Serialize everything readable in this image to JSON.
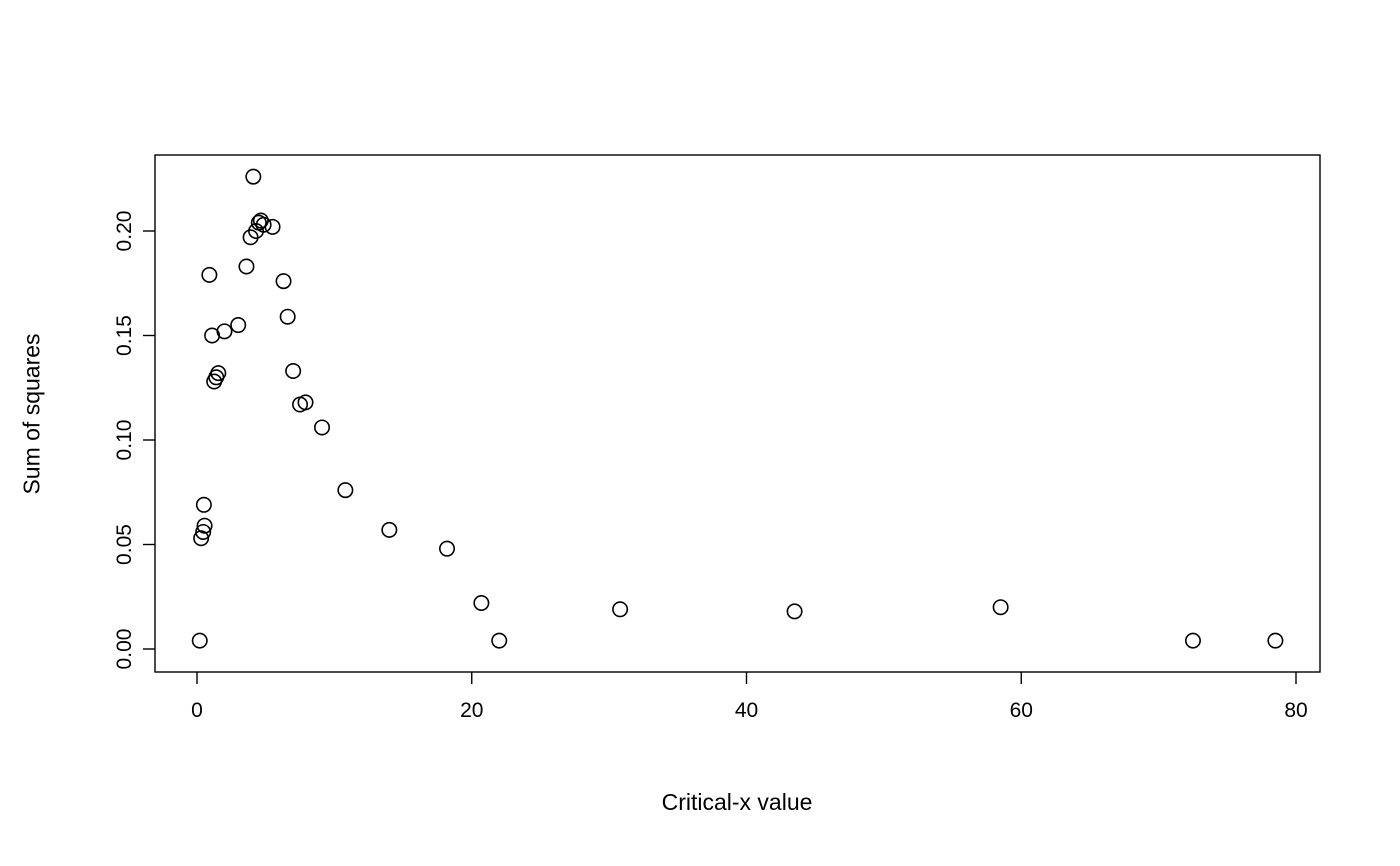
{
  "chart_data": {
    "type": "scatter",
    "title": "",
    "xlabel": "Critical-x value",
    "ylabel": "Sum of squares",
    "xlim": [
      0,
      80
    ],
    "ylim": [
      0.0,
      0.2263
    ],
    "x_ticks": [
      0,
      20,
      40,
      60,
      80
    ],
    "x_tick_labels": [
      "0",
      "20",
      "40",
      "60",
      "80"
    ],
    "y_ticks": [
      0.0,
      0.05,
      0.1,
      0.15,
      0.2
    ],
    "y_tick_labels": [
      "0.00",
      "0.05",
      "0.10",
      "0.15",
      "0.20"
    ],
    "grid": false,
    "legend": "none",
    "marker": "open-circle",
    "marker_color": "#000000",
    "background_color": "#ffffff",
    "points": [
      [
        0.2,
        0.004
      ],
      [
        0.3,
        0.053
      ],
      [
        0.45,
        0.056
      ],
      [
        0.55,
        0.059
      ],
      [
        0.5,
        0.069
      ],
      [
        0.9,
        0.179
      ],
      [
        1.1,
        0.15
      ],
      [
        1.25,
        0.128
      ],
      [
        1.4,
        0.13
      ],
      [
        1.55,
        0.132
      ],
      [
        2.0,
        0.152
      ],
      [
        3.0,
        0.155
      ],
      [
        3.6,
        0.183
      ],
      [
        3.9,
        0.197
      ],
      [
        4.1,
        0.226
      ],
      [
        4.3,
        0.2
      ],
      [
        4.5,
        0.204
      ],
      [
        4.65,
        0.205
      ],
      [
        4.85,
        0.203
      ],
      [
        5.5,
        0.202
      ],
      [
        6.3,
        0.176
      ],
      [
        6.6,
        0.159
      ],
      [
        7.0,
        0.133
      ],
      [
        7.5,
        0.117
      ],
      [
        7.9,
        0.118
      ],
      [
        9.1,
        0.106
      ],
      [
        10.8,
        0.076
      ],
      [
        14.0,
        0.057
      ],
      [
        18.2,
        0.048
      ],
      [
        20.7,
        0.022
      ],
      [
        22.0,
        0.004
      ],
      [
        30.8,
        0.019
      ],
      [
        43.5,
        0.018
      ],
      [
        58.5,
        0.02
      ],
      [
        72.5,
        0.004
      ],
      [
        78.5,
        0.004
      ]
    ]
  }
}
